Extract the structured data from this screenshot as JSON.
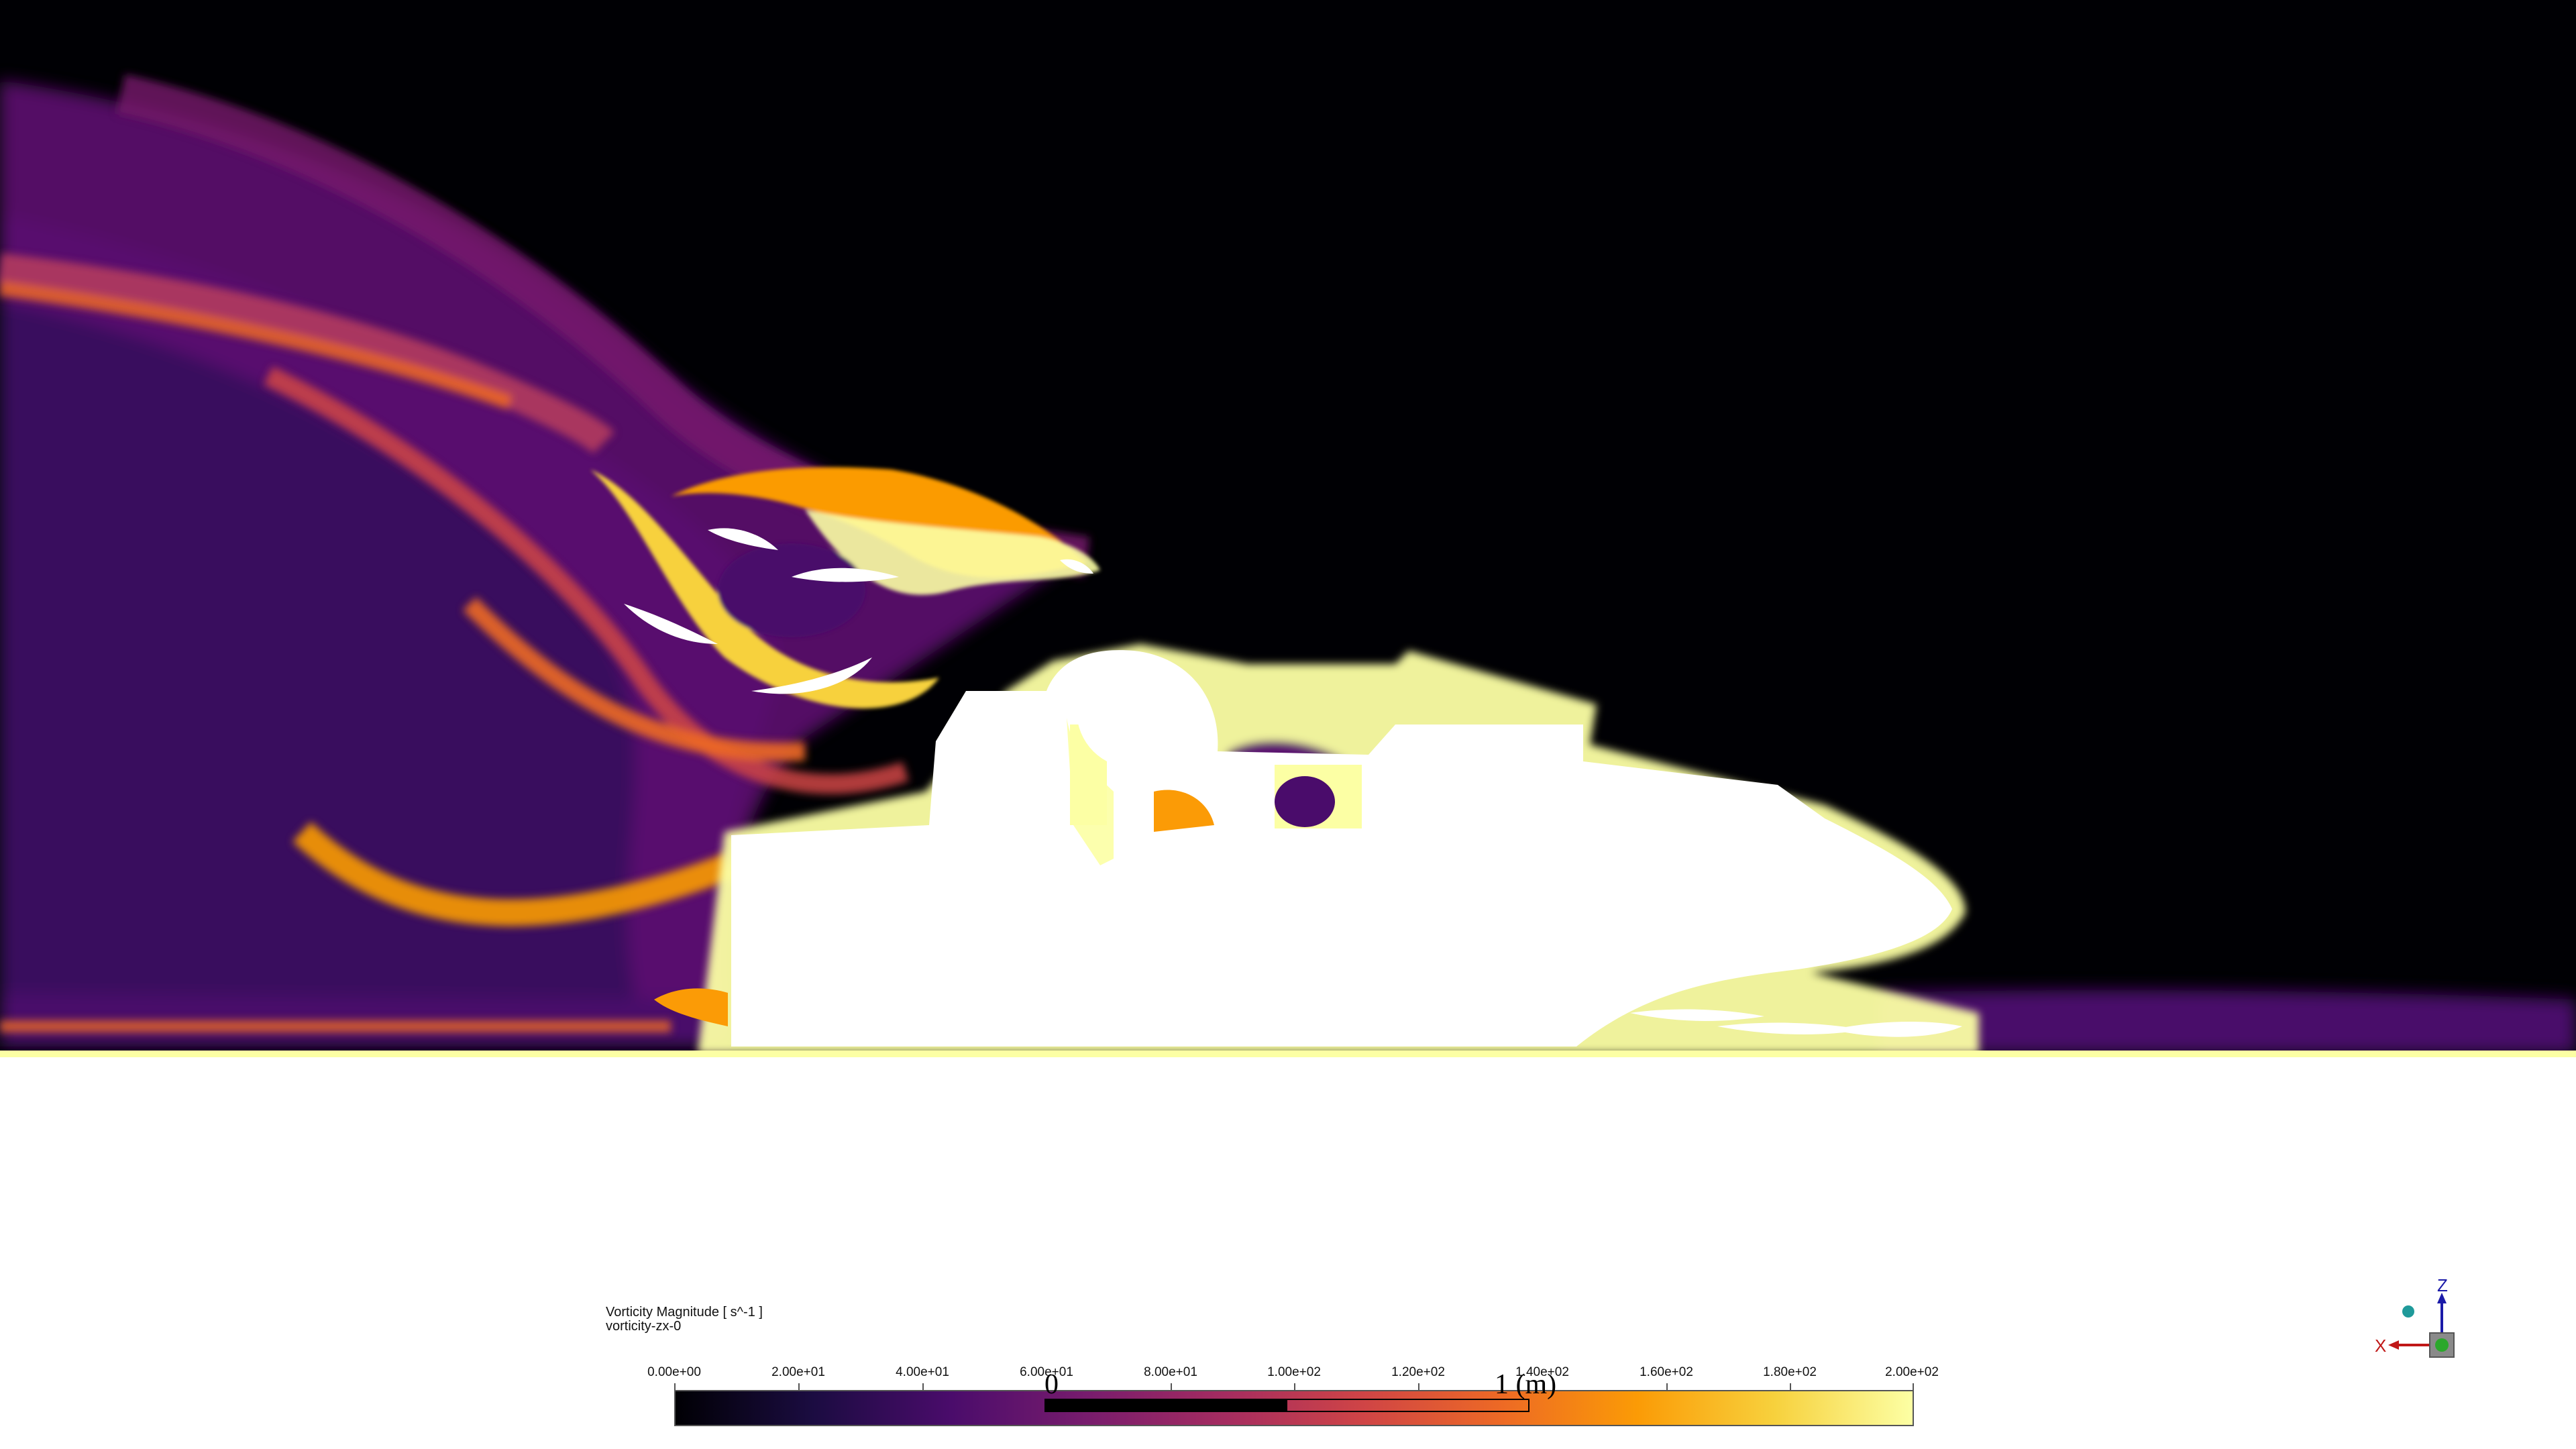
{
  "legend": {
    "title": "Vorticity Magnitude [ s^-1 ]",
    "plane": "vorticity-zx-0",
    "ticks": [
      "0.00e+00",
      "2.00e+01",
      "4.00e+01",
      "6.00e+01",
      "8.00e+01",
      "1.00e+02",
      "1.20e+02",
      "1.40e+02",
      "1.60e+02",
      "1.80e+02",
      "2.00e+02"
    ],
    "colormap": [
      "#000004",
      "#1b0c41",
      "#4a0c6b",
      "#781c6d",
      "#a52c60",
      "#cf4446",
      "#ed6925",
      "#fb9b06",
      "#f7d13d",
      "#fcffa4"
    ]
  },
  "scale_bar": {
    "left_label": "0",
    "right_label": "1 (m)",
    "fill_fraction": 0.5
  },
  "triad": {
    "z_label": "Z",
    "x_label": "X"
  },
  "colors": {
    "background_flow": "#000004",
    "geometry": "#ffffff",
    "ground": "#ffffff"
  }
}
